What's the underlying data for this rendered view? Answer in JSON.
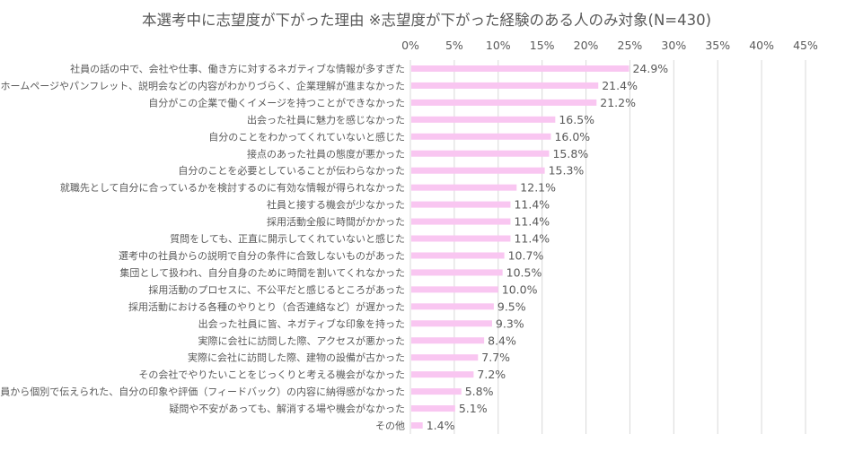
{
  "chart_data": {
    "type": "bar",
    "orientation": "horizontal",
    "title": "本選考中に志望度が下がった理由 ※志望度が下がった経験のある人のみ対象(N=430)",
    "xlabel": "",
    "ylabel": "",
    "xlim": [
      0,
      45
    ],
    "x_ticks": [
      "0%",
      "5%",
      "10%",
      "15%",
      "20%",
      "25%",
      "30%",
      "35%",
      "40%",
      "45%"
    ],
    "tick_values": [
      0,
      5,
      10,
      15,
      20,
      25,
      30,
      35,
      40,
      45
    ],
    "grid": true,
    "legend": "none",
    "bar_color": "#f9c6f1",
    "categories": [
      "社員の話の中で、会社や仕事、働き方に対するネガティブな情報が多すぎた",
      "ホームページやパンフレット、説明会などの内容がわかりづらく、企業理解が進まなかった",
      "自分がこの企業で働くイメージを持つことができなかった",
      "出会った社員に魅力を感じなかった",
      "自分のことをわかってくれていないと感じた",
      "接点のあった社員の態度が悪かった",
      "自分のことを必要としていることが伝わらなかった",
      "就職先として自分に合っているかを検討するのに有効な情報が得られなかった",
      "社員と接する機会が少なかった",
      "採用活動全般に時間がかかった",
      "質問をしても、正直に開示してくれていないと感じた",
      "選考中の社員からの説明で自分の条件に合致しないものがあった",
      "集団として扱われ、自分自身のために時間を割いてくれなかった",
      "採用活動のプロセスに、不公平だと感じるところがあった",
      "採用活動における各種のやりとり（合否連絡など）が遅かった",
      "出会った社員に皆、ネガティブな印象を持った",
      "実際に会社に訪問した際、アクセスが悪かった",
      "実際に会社に訪問した際、建物の設備が古かった",
      "その会社でやりたいことをじっくりと考える機会がなかった",
      "社員から個別で伝えられた、自分の印象や評価（フィードバック）の内容に納得感がなかった",
      "疑問や不安があっても、解消する場や機会がなかった",
      "その他"
    ],
    "values": [
      24.9,
      21.4,
      21.2,
      16.5,
      16.0,
      15.8,
      15.3,
      12.1,
      11.4,
      11.4,
      11.4,
      10.7,
      10.5,
      10.0,
      9.5,
      9.3,
      8.4,
      7.7,
      7.2,
      5.8,
      5.1,
      1.4
    ],
    "labels": [
      "24.9%",
      "21.4%",
      "21.2%",
      "16.5%",
      "16.0%",
      "15.8%",
      "15.3%",
      "12.1%",
      "11.4%",
      "11.4%",
      "11.4%",
      "10.7%",
      "10.5%",
      "10.0%",
      "9.5%",
      "9.3%",
      "8.4%",
      "7.7%",
      "7.2%",
      "5.8%",
      "5.1%",
      "1.4%"
    ]
  }
}
